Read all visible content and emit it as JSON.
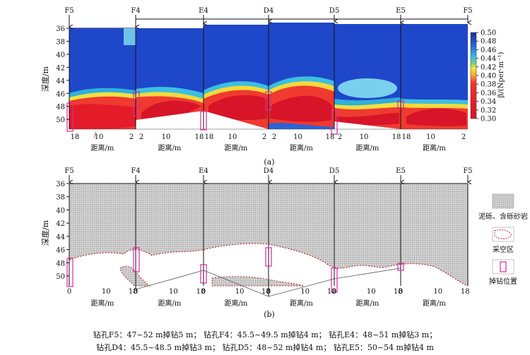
{
  "chart_data": [
    {
      "type": "heatmap",
      "panel_label": "(a)",
      "ylabel": "深度/m",
      "xlabel": "距离/m",
      "y_ticks": [
        "36",
        "38",
        "40",
        "42",
        "44",
        "46",
        "48",
        "50"
      ],
      "ylim": [
        36,
        51.5
      ],
      "stations": [
        "F5",
        "F4",
        "E4",
        "D4",
        "D5",
        "E5",
        "F5"
      ],
      "segments": [
        {
          "from": "F5",
          "to": "F4",
          "x_ticks": [
            "18",
            "10",
            "2"
          ]
        },
        {
          "from": "F4",
          "to": "E4",
          "x_ticks": [
            "2",
            "10",
            "18"
          ]
        },
        {
          "from": "E4",
          "to": "D4",
          "x_ticks": [
            "18",
            "10",
            "2"
          ]
        },
        {
          "from": "D4",
          "to": "D5",
          "x_ticks": [
            "2",
            "10",
            "18"
          ]
        },
        {
          "from": "D5",
          "to": "E5",
          "x_ticks": [
            "2",
            "10",
            "18"
          ]
        },
        {
          "from": "E5",
          "to": "F5",
          "x_ticks": [
            "18",
            "10",
            "2"
          ]
        }
      ],
      "colorbar": {
        "label": "β/(Nper·m⁻¹)",
        "ticks": [
          "0.50",
          "0.48",
          "0.46",
          "0.44",
          "0.42",
          "0.40",
          "0.38",
          "0.36",
          "0.34",
          "0.32",
          "0.30"
        ],
        "range": [
          0.3,
          0.5
        ]
      },
      "stray_mark": "/"
    },
    {
      "type": "diagram",
      "panel_label": "(b)",
      "ylabel": "深度/m",
      "xlabel": "距离/m",
      "y_ticks": [
        "36",
        "38",
        "40",
        "42",
        "44",
        "46",
        "48",
        "50"
      ],
      "ylim": [
        36,
        51.5
      ],
      "stations": [
        "F5",
        "F4",
        "E4",
        "D4",
        "D5",
        "E5",
        "F5"
      ],
      "x_ticks": [
        "0",
        "10",
        "18"
      ],
      "legend": [
        {
          "label": "泥砾、含砾砂岩",
          "kind": "hatched-fill"
        },
        {
          "label": "采空区",
          "kind": "dashed-outline"
        },
        {
          "label": "掉钻位置",
          "kind": "pink-rect"
        }
      ]
    }
  ],
  "caption": {
    "line1": "钻孔F5：47~52 m掉钻5 m；  钻孔F4：45.5~49.5 m掉钻4 m；  钻孔E4：48~51 m掉钻3 m；",
    "line2": "钻孔D4：45.5~48.5 m掉钻3 m；  钻孔D5：48~52 m掉钻4 m；  钻孔E5：50~54 m掉钻4 m"
  },
  "colors": {
    "pink": "#e0259f",
    "dashed": "#c0282a",
    "rock": "#c9c9c9"
  }
}
